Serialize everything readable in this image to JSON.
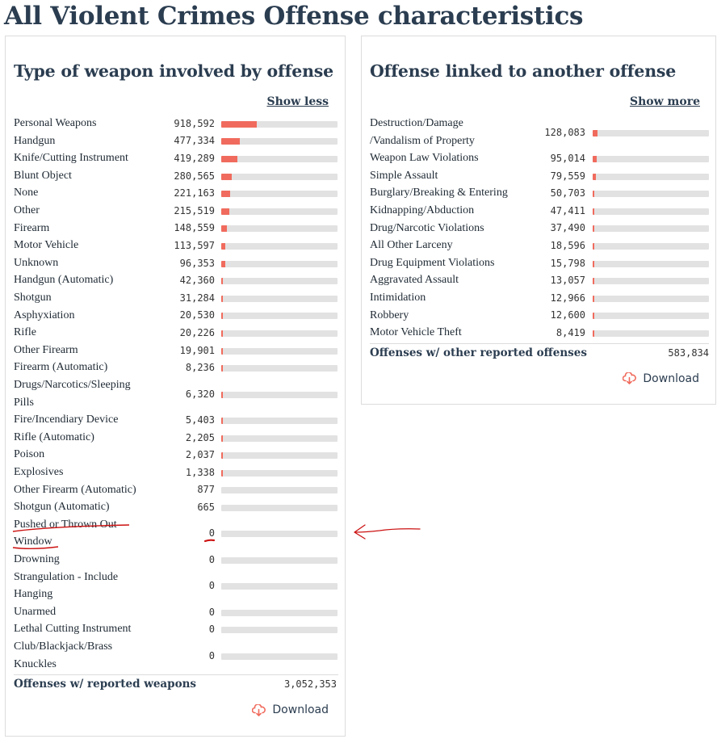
{
  "page_title": "All Violent Crimes Offense characteristics",
  "colors": {
    "bar_fill": "#f06b5d",
    "bar_track": "#e2e2e2",
    "heading": "#2b3d50",
    "annotation": "#cc1111"
  },
  "weapons": {
    "title": "Type of weapon involved by offense",
    "toggle": "Show less",
    "max": 918592,
    "rows": [
      {
        "label": "Personal Weapons",
        "value": "918,592",
        "n": 918592
      },
      {
        "label": "Handgun",
        "value": "477,334",
        "n": 477334
      },
      {
        "label": "Knife/Cutting Instrument",
        "value": "419,289",
        "n": 419289
      },
      {
        "label": "Blunt Object",
        "value": "280,565",
        "n": 280565
      },
      {
        "label": "None",
        "value": "221,163",
        "n": 221163
      },
      {
        "label": "Other",
        "value": "215,519",
        "n": 215519
      },
      {
        "label": "Firearm",
        "value": "148,559",
        "n": 148559
      },
      {
        "label": "Motor Vehicle",
        "value": "113,597",
        "n": 113597
      },
      {
        "label": "Unknown",
        "value": "96,353",
        "n": 96353
      },
      {
        "label": "Handgun (Automatic)",
        "value": "42,360",
        "n": 42360
      },
      {
        "label": "Shotgun",
        "value": "31,284",
        "n": 31284
      },
      {
        "label": "Asphyxiation",
        "value": "20,530",
        "n": 20530
      },
      {
        "label": "Rifle",
        "value": "20,226",
        "n": 20226
      },
      {
        "label": "Other Firearm",
        "value": "19,901",
        "n": 19901
      },
      {
        "label": "Firearm (Automatic)",
        "value": "8,236",
        "n": 8236
      },
      {
        "label": "Drugs/Narcotics/Sleeping\nPills",
        "value": "6,320",
        "n": 6320
      },
      {
        "label": "Fire/Incendiary Device",
        "value": "5,403",
        "n": 5403
      },
      {
        "label": "Rifle (Automatic)",
        "value": "2,205",
        "n": 2205
      },
      {
        "label": "Poison",
        "value": "2,037",
        "n": 2037
      },
      {
        "label": "Explosives",
        "value": "1,338",
        "n": 1338
      },
      {
        "label": "Other Firearm (Automatic)",
        "value": "877",
        "n": 877
      },
      {
        "label": "Shotgun (Automatic)",
        "value": "665",
        "n": 665
      },
      {
        "label": "Pushed or Thrown Out\nWindow",
        "value": "0",
        "n": 0
      },
      {
        "label": "Drowning",
        "value": "0",
        "n": 0
      },
      {
        "label": "Strangulation - Include\nHanging",
        "value": "0",
        "n": 0
      },
      {
        "label": "Unarmed",
        "value": "0",
        "n": 0
      },
      {
        "label": "Lethal Cutting Instrument",
        "value": "0",
        "n": 0
      },
      {
        "label": "Club/Blackjack/Brass\nKnuckles",
        "value": "0",
        "n": 0
      }
    ],
    "total_label": "Offenses w/ reported weapons",
    "total_value": "3,052,353",
    "download_label": "Download"
  },
  "linked": {
    "title": "Offense linked to another offense",
    "toggle": "Show more",
    "max": 918592,
    "rows": [
      {
        "label": "Destruction/Damage\n/Vandalism of Property",
        "value": "128,083",
        "n": 128083
      },
      {
        "label": "Weapon Law Violations",
        "value": "95,014",
        "n": 95014
      },
      {
        "label": "Simple Assault",
        "value": "79,559",
        "n": 79559
      },
      {
        "label": "Burglary/Breaking & Entering",
        "value": "50,703",
        "n": 50703
      },
      {
        "label": "Kidnapping/Abduction",
        "value": "47,411",
        "n": 47411
      },
      {
        "label": "Drug/Narcotic Violations",
        "value": "37,490",
        "n": 37490
      },
      {
        "label": "All Other Larceny",
        "value": "18,596",
        "n": 18596
      },
      {
        "label": "Drug Equipment Violations",
        "value": "15,798",
        "n": 15798
      },
      {
        "label": "Aggravated Assault",
        "value": "13,057",
        "n": 13057
      },
      {
        "label": "Intimidation",
        "value": "12,966",
        "n": 12966
      },
      {
        "label": "Robbery",
        "value": "12,600",
        "n": 12600
      },
      {
        "label": "Motor Vehicle Theft",
        "value": "8,419",
        "n": 8419
      }
    ],
    "total_label": "Offenses w/ other reported offenses",
    "total_value": "583,834",
    "download_label": "Download"
  }
}
